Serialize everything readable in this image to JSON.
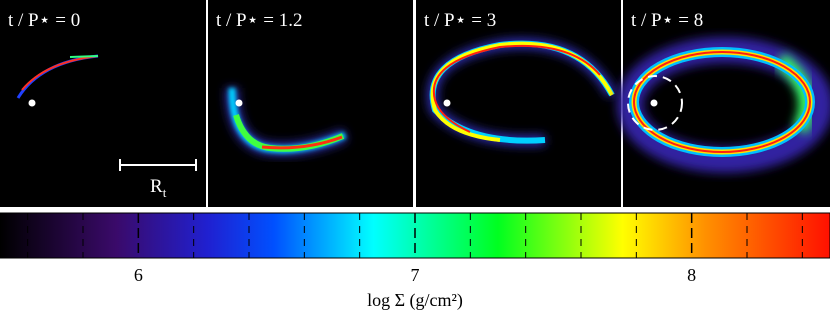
{
  "panels": [
    {
      "title": "t / P⋆ = 0"
    },
    {
      "title": "t / P⋆ = 1.2"
    },
    {
      "title": "t / P⋆ = 3"
    },
    {
      "title": "t / P⋆ = 8"
    }
  ],
  "scale_bar": {
    "label": "R",
    "subscript": "t"
  },
  "colorbar": {
    "label": "log Σ  (g/cm²)",
    "xlim": [
      5.5,
      8.5
    ],
    "xticks": [
      6,
      7,
      8
    ],
    "minor_ticks": [
      5.6,
      5.8,
      6.2,
      6.4,
      6.6,
      6.8,
      7.2,
      7.4,
      7.6,
      7.8,
      8.2,
      8.4
    ]
  }
}
